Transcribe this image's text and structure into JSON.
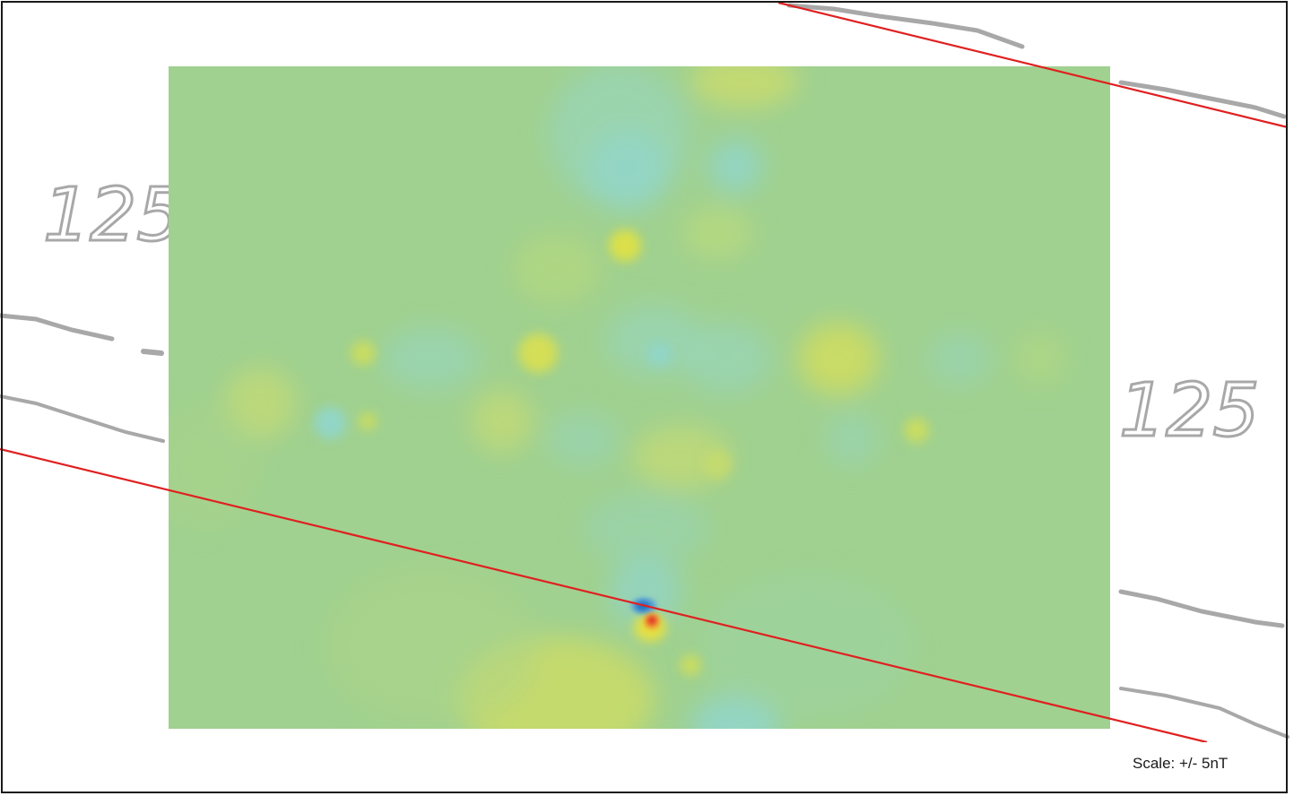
{
  "map": {
    "contour_labels": [
      "125",
      "125"
    ],
    "scale_label": "Scale: +/- 5nT"
  },
  "colors": {
    "background_field": "#a0d190",
    "positive_anomaly": "#d4de5a",
    "negative_anomaly": "#92d5c6",
    "strong_positive": "#e0302a",
    "strong_negative": "#1f6fc0",
    "boundary_line": "#e02020",
    "contour_lines": "#a8a8a8",
    "frame": "#1a1a1a"
  }
}
